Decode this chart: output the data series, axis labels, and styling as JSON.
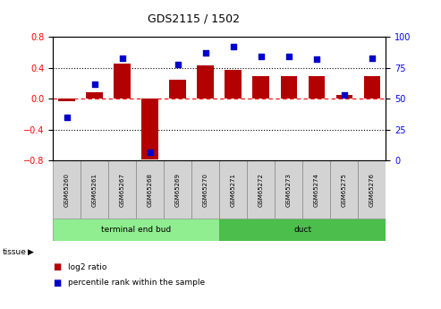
{
  "title": "GDS2115 / 1502",
  "categories": [
    "GSM65260",
    "GSM65261",
    "GSM65267",
    "GSM65268",
    "GSM65269",
    "GSM65270",
    "GSM65271",
    "GSM65272",
    "GSM65273",
    "GSM65274",
    "GSM65275",
    "GSM65276"
  ],
  "log2_ratio": [
    -0.03,
    0.08,
    0.46,
    -0.78,
    0.25,
    0.43,
    0.37,
    0.3,
    0.3,
    0.3,
    0.05,
    0.3
  ],
  "percentile_rank": [
    35,
    62,
    83,
    7,
    78,
    87,
    92,
    84,
    84,
    82,
    53,
    83
  ],
  "bar_color": "#b30000",
  "dot_color": "#0000cc",
  "teb_n": 6,
  "teb_label": "terminal end bud",
  "duct_label": "duct",
  "teb_color": "#90ee90",
  "duct_color": "#4cbe4c",
  "sample_box_color": "#d3d3d3",
  "ylim_left": [
    -0.8,
    0.8
  ],
  "ylim_right": [
    0,
    100
  ],
  "yticks_left": [
    -0.8,
    -0.4,
    0.0,
    0.4,
    0.8
  ],
  "yticks_right": [
    0,
    25,
    50,
    75,
    100
  ],
  "legend_items": [
    {
      "label": "log2 ratio",
      "color": "#b30000"
    },
    {
      "label": "percentile rank within the sample",
      "color": "#0000cc"
    }
  ],
  "tissue_label": "tissue"
}
